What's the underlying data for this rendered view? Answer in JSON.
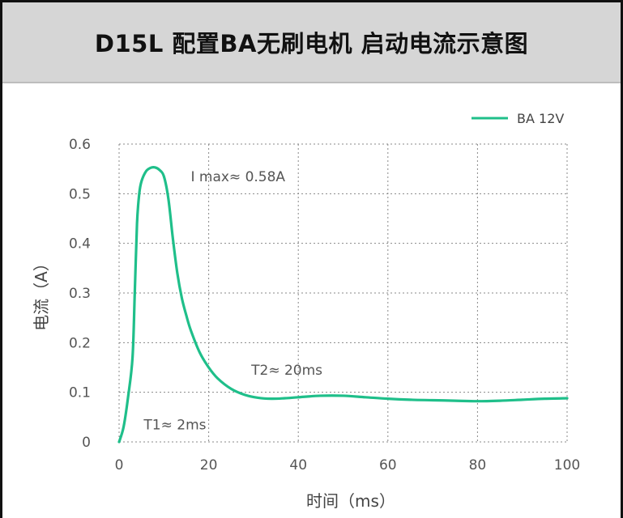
{
  "title": "D15L 配置BA无刷电机 启动电流示意图",
  "chart_data": {
    "type": "line",
    "xlabel": "时间（ms）",
    "ylabel": "电流（A）",
    "xlim": [
      0,
      100
    ],
    "ylim": [
      0,
      0.6
    ],
    "x_ticks": [
      0,
      20,
      40,
      60,
      80,
      100
    ],
    "y_ticks": [
      0,
      0.1,
      0.2,
      0.3,
      0.4,
      0.5,
      0.6
    ],
    "x_tick_labels": [
      "0",
      "20",
      "40",
      "60",
      "80",
      "100"
    ],
    "y_tick_labels": [
      "0",
      "0.1",
      "0.2",
      "0.3",
      "0.4",
      "0.5",
      "0.6"
    ],
    "grid": true,
    "legend_position": "top-right",
    "series": [
      {
        "name": "BA 12V",
        "color": "#1fbf8a",
        "x": [
          0,
          1,
          2,
          3,
          3.5,
          4,
          4.5,
          5,
          6,
          7,
          8,
          9,
          10,
          11,
          12,
          13,
          14,
          15,
          16,
          18,
          20,
          22,
          25,
          28,
          31,
          34,
          37,
          40,
          45,
          50,
          55,
          60,
          65,
          70,
          75,
          80,
          85,
          90,
          95,
          100
        ],
        "values": [
          0,
          0.03,
          0.09,
          0.17,
          0.3,
          0.44,
          0.5,
          0.525,
          0.545,
          0.552,
          0.553,
          0.548,
          0.535,
          0.49,
          0.41,
          0.34,
          0.29,
          0.255,
          0.225,
          0.18,
          0.15,
          0.128,
          0.107,
          0.095,
          0.089,
          0.087,
          0.088,
          0.09,
          0.093,
          0.093,
          0.09,
          0.087,
          0.085,
          0.084,
          0.083,
          0.082,
          0.083,
          0.085,
          0.087,
          0.088
        ]
      }
    ],
    "annotations": [
      {
        "text": "I max≈ 0.58A",
        "x": 16,
        "y": 0.525
      },
      {
        "text": "T2≈ 20ms",
        "x": 29.5,
        "y": 0.135
      },
      {
        "text": "T1≈ 2ms",
        "x": 5.5,
        "y": 0.025
      }
    ]
  }
}
